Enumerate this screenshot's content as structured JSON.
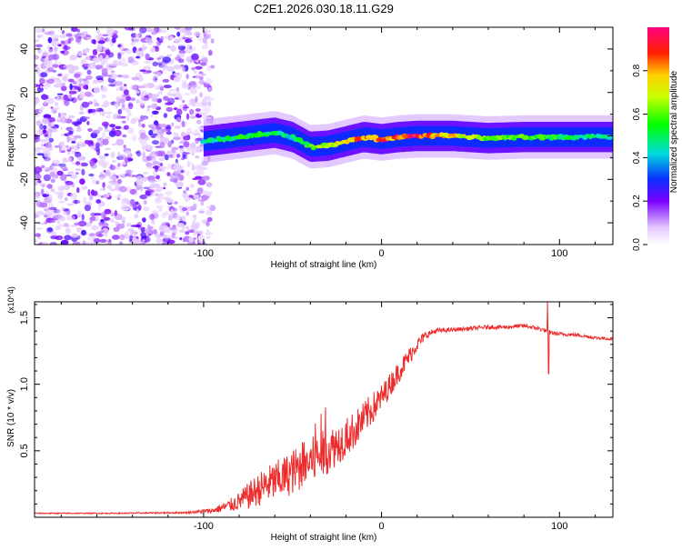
{
  "title": "C2E1.2026.030.18.11.G29",
  "chart_data": [
    {
      "type": "heatmap",
      "xlabel": "Height of straight line (km)",
      "ylabel": "Frequency (Hz)",
      "xlim": [
        -195,
        130
      ],
      "ylim": [
        -50,
        50
      ],
      "xticks": [
        -100,
        0,
        100
      ],
      "xtick_labels": [
        "-100",
        "0",
        "100"
      ],
      "yticks": [
        -40,
        -20,
        0,
        20,
        40
      ],
      "ytick_labels": [
        "-40",
        "-20",
        "0",
        "20",
        "40"
      ],
      "colorbar": {
        "label": "Normalized spectral amplitude",
        "range": [
          0,
          1
        ],
        "ticks": [
          0.0,
          0.2,
          0.4,
          0.6,
          0.8
        ],
        "tick_labels": [
          "0.0",
          "0.2",
          "0.4",
          "0.6",
          "0.8"
        ]
      },
      "noise_region_x": [
        -195,
        -95
      ],
      "ridge": {
        "x": [
          -100,
          -90,
          -80,
          -70,
          -60,
          -50,
          -40,
          -30,
          -20,
          -10,
          0,
          10,
          20,
          40,
          60,
          80,
          100,
          130
        ],
        "y": [
          -2.5,
          -1.5,
          -0.5,
          0.5,
          1.5,
          -0.5,
          -5,
          -4.5,
          -2.5,
          -0.5,
          -1.5,
          -0.5,
          0,
          0,
          -1,
          -0.5,
          -0.5,
          -0.5
        ],
        "amplitude": [
          0.45,
          0.5,
          0.55,
          0.55,
          0.5,
          0.45,
          0.6,
          0.7,
          0.8,
          0.85,
          0.85,
          0.9,
          0.95,
          0.75,
          0.65,
          0.6,
          0.55,
          0.45
        ]
      }
    },
    {
      "type": "line",
      "xlabel": "Height of straight line (km)",
      "ylabel": "SNR (10 * v/v)",
      "y_multiplier": "(x10^4)",
      "xlim": [
        -195,
        130
      ],
      "ylim": [
        0,
        1.62
      ],
      "xticks": [
        -100,
        0,
        100
      ],
      "xtick_labels": [
        "-100",
        "0",
        "100"
      ],
      "yticks": [
        0.5,
        1.0,
        1.5
      ],
      "ytick_labels": [
        "0.5",
        "1.0",
        "1.5"
      ],
      "series": [
        {
          "name": "SNR",
          "color": "#ee2c2c",
          "x": [
            -195,
            -150,
            -110,
            -95,
            -85,
            -80,
            -75,
            -70,
            -65,
            -60,
            -55,
            -50,
            -45,
            -40,
            -35,
            -30,
            -25,
            -20,
            -15,
            -10,
            -5,
            0,
            5,
            10,
            15,
            20,
            25,
            30,
            40,
            50,
            60,
            70,
            80,
            88,
            93,
            98,
            110,
            120,
            130
          ],
          "y": [
            0.03,
            0.03,
            0.035,
            0.05,
            0.09,
            0.12,
            0.16,
            0.2,
            0.24,
            0.27,
            0.3,
            0.34,
            0.38,
            0.42,
            0.46,
            0.5,
            0.55,
            0.6,
            0.66,
            0.74,
            0.82,
            0.9,
            1.0,
            1.1,
            1.2,
            1.3,
            1.37,
            1.4,
            1.41,
            1.42,
            1.43,
            1.43,
            1.44,
            1.42,
            1.4,
            1.38,
            1.37,
            1.35,
            1.34
          ],
          "noise_amplitude": [
            0.004,
            0.004,
            0.006,
            0.02,
            0.05,
            0.07,
            0.1,
            0.12,
            0.14,
            0.15,
            0.16,
            0.17,
            0.18,
            0.18,
            0.18,
            0.17,
            0.16,
            0.15,
            0.14,
            0.13,
            0.12,
            0.1,
            0.09,
            0.08,
            0.07,
            0.05,
            0.03,
            0.02,
            0.015,
            0.015,
            0.015,
            0.015,
            0.015,
            0.015,
            0.015,
            0.015,
            0.012,
            0.012,
            0.012
          ]
        }
      ]
    }
  ]
}
